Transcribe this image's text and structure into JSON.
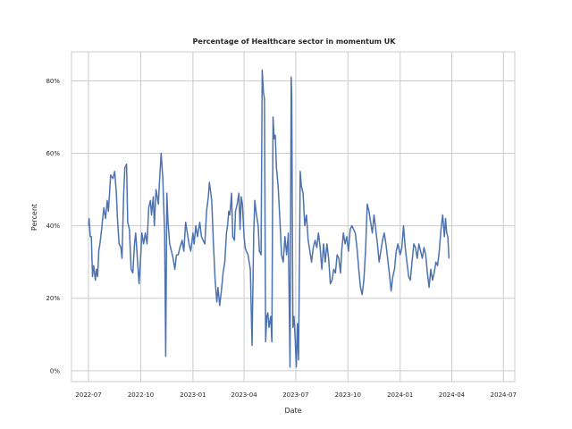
{
  "chart_data": {
    "type": "line",
    "title": "Percentage of Healthcare sector in momentum UK",
    "xlabel": "Date",
    "ylabel": "Percent",
    "grid": true,
    "legend": "none",
    "line_color": "#4c72b0",
    "xlim": [
      "2022-06-01",
      "2024-07-21"
    ],
    "ylim": [
      -3,
      88
    ],
    "x_ticks": [
      {
        "date": "2022-07-01",
        "label": "2022-07"
      },
      {
        "date": "2022-10-01",
        "label": "2022-10"
      },
      {
        "date": "2023-01-01",
        "label": "2023-01"
      },
      {
        "date": "2023-04-01",
        "label": "2023-04"
      },
      {
        "date": "2023-07-01",
        "label": "2023-07"
      },
      {
        "date": "2023-10-01",
        "label": "2023-10"
      },
      {
        "date": "2024-01-01",
        "label": "2024-01"
      },
      {
        "date": "2024-04-01",
        "label": "2024-04"
      },
      {
        "date": "2024-07-01",
        "label": "2024-07"
      }
    ],
    "y_ticks": [
      {
        "value": 0,
        "label": "0%"
      },
      {
        "value": 20,
        "label": "20%"
      },
      {
        "value": 40,
        "label": "40%"
      },
      {
        "value": 60,
        "label": "60%"
      },
      {
        "value": 80,
        "label": "80%"
      }
    ],
    "series": [
      {
        "values": [
          [
            "2022-07-01",
            40
          ],
          [
            "2022-07-02",
            42
          ],
          [
            "2022-07-04",
            37
          ],
          [
            "2022-07-06",
            37
          ],
          [
            "2022-07-08",
            26
          ],
          [
            "2022-07-10",
            29
          ],
          [
            "2022-07-13",
            25
          ],
          [
            "2022-07-15",
            28
          ],
          [
            "2022-07-17",
            26
          ],
          [
            "2022-07-19",
            33
          ],
          [
            "2022-07-21",
            35
          ],
          [
            "2022-07-24",
            39
          ],
          [
            "2022-07-26",
            42
          ],
          [
            "2022-07-28",
            45
          ],
          [
            "2022-07-31",
            42
          ],
          [
            "2022-08-03",
            47
          ],
          [
            "2022-08-05",
            44
          ],
          [
            "2022-08-07",
            49
          ],
          [
            "2022-08-09",
            54
          ],
          [
            "2022-08-13",
            53
          ],
          [
            "2022-08-16",
            55
          ],
          [
            "2022-08-19",
            49
          ],
          [
            "2022-08-21",
            42
          ],
          [
            "2022-08-24",
            35
          ],
          [
            "2022-08-27",
            34
          ],
          [
            "2022-08-29",
            31
          ],
          [
            "2022-09-01",
            49
          ],
          [
            "2022-09-03",
            56
          ],
          [
            "2022-09-06",
            57
          ],
          [
            "2022-09-08",
            41
          ],
          [
            "2022-09-11",
            39
          ],
          [
            "2022-09-14",
            28
          ],
          [
            "2022-09-17",
            27
          ],
          [
            "2022-09-20",
            35
          ],
          [
            "2022-09-22",
            38
          ],
          [
            "2022-09-25",
            31
          ],
          [
            "2022-09-28",
            24
          ],
          [
            "2022-10-01",
            32
          ],
          [
            "2022-10-03",
            38
          ],
          [
            "2022-10-06",
            35
          ],
          [
            "2022-10-09",
            38
          ],
          [
            "2022-10-12",
            35
          ],
          [
            "2022-10-15",
            45
          ],
          [
            "2022-10-18",
            47
          ],
          [
            "2022-10-20",
            43
          ],
          [
            "2022-10-23",
            48
          ],
          [
            "2022-10-25",
            40
          ],
          [
            "2022-10-28",
            50
          ],
          [
            "2022-11-01",
            46
          ],
          [
            "2022-11-03",
            52
          ],
          [
            "2022-11-06",
            60
          ],
          [
            "2022-11-09",
            53
          ],
          [
            "2022-11-12",
            38
          ],
          [
            "2022-11-14",
            4
          ],
          [
            "2022-11-16",
            49
          ],
          [
            "2022-11-18",
            41
          ],
          [
            "2022-11-21",
            35
          ],
          [
            "2022-11-24",
            33
          ],
          [
            "2022-11-27",
            31
          ],
          [
            "2022-11-30",
            28
          ],
          [
            "2022-12-03",
            32
          ],
          [
            "2022-12-06",
            32
          ],
          [
            "2022-12-09",
            34
          ],
          [
            "2022-12-13",
            36
          ],
          [
            "2022-12-16",
            33
          ],
          [
            "2022-12-19",
            41
          ],
          [
            "2022-12-22",
            38
          ],
          [
            "2022-12-25",
            35
          ],
          [
            "2022-12-28",
            33
          ],
          [
            "2023-01-01",
            38
          ],
          [
            "2023-01-03",
            35
          ],
          [
            "2023-01-06",
            40
          ],
          [
            "2023-01-09",
            37
          ],
          [
            "2023-01-13",
            41
          ],
          [
            "2023-01-16",
            37
          ],
          [
            "2023-01-19",
            36
          ],
          [
            "2023-01-22",
            35
          ],
          [
            "2023-01-25",
            44
          ],
          [
            "2023-01-28",
            48
          ],
          [
            "2023-01-30",
            52
          ],
          [
            "2023-02-03",
            47
          ],
          [
            "2023-02-06",
            35
          ],
          [
            "2023-02-09",
            25
          ],
          [
            "2023-02-12",
            19
          ],
          [
            "2023-02-14",
            23
          ],
          [
            "2023-02-17",
            18
          ],
          [
            "2023-02-20",
            22
          ],
          [
            "2023-02-23",
            27
          ],
          [
            "2023-02-26",
            30
          ],
          [
            "2023-03-01",
            38
          ],
          [
            "2023-03-03",
            40
          ],
          [
            "2023-03-05",
            44
          ],
          [
            "2023-03-07",
            43
          ],
          [
            "2023-03-10",
            49
          ],
          [
            "2023-03-12",
            37
          ],
          [
            "2023-03-15",
            36
          ],
          [
            "2023-03-17",
            44
          ],
          [
            "2023-03-20",
            46
          ],
          [
            "2023-03-23",
            49
          ],
          [
            "2023-03-25",
            39
          ],
          [
            "2023-03-27",
            48
          ],
          [
            "2023-03-29",
            46
          ],
          [
            "2023-04-01",
            37
          ],
          [
            "2023-04-03",
            34
          ],
          [
            "2023-04-05",
            33
          ],
          [
            "2023-04-08",
            32
          ],
          [
            "2023-04-12",
            28
          ],
          [
            "2023-04-15",
            7
          ],
          [
            "2023-04-18",
            38
          ],
          [
            "2023-04-20",
            47
          ],
          [
            "2023-04-23",
            43
          ],
          [
            "2023-04-26",
            40
          ],
          [
            "2023-04-28",
            33
          ],
          [
            "2023-05-01",
            32
          ],
          [
            "2023-05-03",
            83
          ],
          [
            "2023-05-05",
            77
          ],
          [
            "2023-05-07",
            75
          ],
          [
            "2023-05-09",
            8
          ],
          [
            "2023-05-11",
            15
          ],
          [
            "2023-05-13",
            16
          ],
          [
            "2023-05-15",
            12
          ],
          [
            "2023-05-18",
            15
          ],
          [
            "2023-05-20",
            8
          ],
          [
            "2023-05-22",
            70
          ],
          [
            "2023-05-24",
            64
          ],
          [
            "2023-05-26",
            65
          ],
          [
            "2023-05-28",
            56
          ],
          [
            "2023-05-31",
            51
          ],
          [
            "2023-06-03",
            42
          ],
          [
            "2023-06-06",
            32
          ],
          [
            "2023-06-09",
            30
          ],
          [
            "2023-06-12",
            37
          ],
          [
            "2023-06-15",
            32
          ],
          [
            "2023-06-18",
            38
          ],
          [
            "2023-06-21",
            1
          ],
          [
            "2023-06-23",
            81
          ],
          [
            "2023-06-24",
            76
          ],
          [
            "2023-06-26",
            12
          ],
          [
            "2023-06-28",
            15
          ],
          [
            "2023-06-30",
            9
          ],
          [
            "2023-07-02",
            1
          ],
          [
            "2023-07-04",
            13
          ],
          [
            "2023-07-06",
            3
          ],
          [
            "2023-07-08",
            36
          ],
          [
            "2023-07-09",
            55
          ],
          [
            "2023-07-11",
            51
          ],
          [
            "2023-07-14",
            49
          ],
          [
            "2023-07-17",
            40
          ],
          [
            "2023-07-20",
            43
          ],
          [
            "2023-07-23",
            36
          ],
          [
            "2023-07-26",
            33
          ],
          [
            "2023-07-29",
            30
          ],
          [
            "2023-08-01",
            34
          ],
          [
            "2023-08-04",
            36
          ],
          [
            "2023-08-07",
            34
          ],
          [
            "2023-08-10",
            38
          ],
          [
            "2023-08-13",
            34
          ],
          [
            "2023-08-16",
            28
          ],
          [
            "2023-08-19",
            35
          ],
          [
            "2023-08-22",
            30
          ],
          [
            "2023-08-25",
            35
          ],
          [
            "2023-08-28",
            31
          ],
          [
            "2023-08-31",
            24
          ],
          [
            "2023-09-03",
            25
          ],
          [
            "2023-09-06",
            28
          ],
          [
            "2023-09-09",
            27
          ],
          [
            "2023-09-12",
            32
          ],
          [
            "2023-09-15",
            31
          ],
          [
            "2023-09-18",
            27
          ],
          [
            "2023-09-20",
            33
          ],
          [
            "2023-09-23",
            38
          ],
          [
            "2023-09-26",
            35
          ],
          [
            "2023-09-29",
            37
          ],
          [
            "2023-10-02",
            33
          ],
          [
            "2023-10-05",
            39
          ],
          [
            "2023-10-08",
            40
          ],
          [
            "2023-10-11",
            39
          ],
          [
            "2023-10-14",
            38
          ],
          [
            "2023-10-17",
            34
          ],
          [
            "2023-10-20",
            28
          ],
          [
            "2023-10-23",
            23
          ],
          [
            "2023-10-26",
            21
          ],
          [
            "2023-10-29",
            25
          ],
          [
            "2023-11-01",
            33
          ],
          [
            "2023-11-04",
            46
          ],
          [
            "2023-11-07",
            44
          ],
          [
            "2023-11-10",
            41
          ],
          [
            "2023-11-13",
            38
          ],
          [
            "2023-11-16",
            43
          ],
          [
            "2023-11-19",
            39
          ],
          [
            "2023-11-22",
            35
          ],
          [
            "2023-11-25",
            30
          ],
          [
            "2023-11-28",
            33
          ],
          [
            "2023-12-01",
            36
          ],
          [
            "2023-12-04",
            38
          ],
          [
            "2023-12-07",
            35
          ],
          [
            "2023-12-10",
            31
          ],
          [
            "2023-12-13",
            27
          ],
          [
            "2023-12-16",
            22
          ],
          [
            "2023-12-19",
            26
          ],
          [
            "2023-12-22",
            28
          ],
          [
            "2023-12-25",
            33
          ],
          [
            "2023-12-28",
            35
          ],
          [
            "2024-01-01",
            32
          ],
          [
            "2024-01-04",
            34
          ],
          [
            "2024-01-07",
            40
          ],
          [
            "2024-01-10",
            34
          ],
          [
            "2024-01-13",
            30
          ],
          [
            "2024-01-16",
            26
          ],
          [
            "2024-01-19",
            25
          ],
          [
            "2024-01-22",
            30
          ],
          [
            "2024-01-25",
            35
          ],
          [
            "2024-01-28",
            34
          ],
          [
            "2024-01-31",
            31
          ],
          [
            "2024-02-03",
            35
          ],
          [
            "2024-02-06",
            33
          ],
          [
            "2024-02-09",
            31
          ],
          [
            "2024-02-12",
            34
          ],
          [
            "2024-02-15",
            32
          ],
          [
            "2024-02-18",
            27
          ],
          [
            "2024-02-21",
            23
          ],
          [
            "2024-02-24",
            28
          ],
          [
            "2024-02-27",
            25
          ],
          [
            "2024-03-01",
            27
          ],
          [
            "2024-03-04",
            30
          ],
          [
            "2024-03-07",
            29
          ],
          [
            "2024-03-10",
            33
          ],
          [
            "2024-03-13",
            39
          ],
          [
            "2024-03-16",
            43
          ],
          [
            "2024-03-19",
            37
          ],
          [
            "2024-03-21",
            42
          ],
          [
            "2024-03-23",
            38
          ],
          [
            "2024-03-25",
            37
          ],
          [
            "2024-03-27",
            31
          ]
        ]
      }
    ]
  }
}
